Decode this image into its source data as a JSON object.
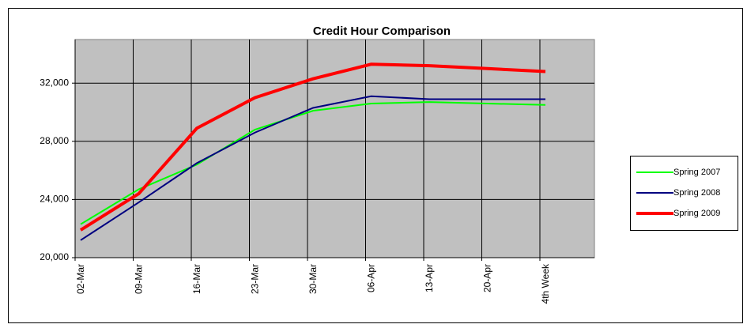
{
  "chart_data": {
    "type": "line",
    "title": "Credit Hour Comparison",
    "categories": [
      "02-Mar",
      "09-Mar",
      "16-Mar",
      "23-Mar",
      "30-Mar",
      "06-Apr",
      "13-Apr",
      "20-Apr",
      "4th Week"
    ],
    "series": [
      {
        "name": "Spring 2007",
        "color": "#00ff00",
        "width": 2,
        "values": [
          22300,
          24700,
          26400,
          28800,
          30100,
          30600,
          30700,
          30600,
          30500
        ]
      },
      {
        "name": "Spring 2008",
        "color": "#000080",
        "width": 2,
        "values": [
          21200,
          23800,
          26500,
          28600,
          30300,
          31100,
          30900,
          30900,
          30900
        ]
      },
      {
        "name": "Spring 2009",
        "color": "#ff0000",
        "width": 4,
        "values": [
          21900,
          24400,
          28900,
          31000,
          32300,
          33300,
          33200,
          33000,
          32800
        ]
      }
    ],
    "ylim": [
      20000,
      35000
    ],
    "yticks": [
      {
        "value": 20000,
        "label": "20,000"
      },
      {
        "value": 24000,
        "label": "24,000"
      },
      {
        "value": 28000,
        "label": "28,000"
      },
      {
        "value": 32000,
        "label": "32,000"
      }
    ],
    "grid": true,
    "legend": "right"
  }
}
